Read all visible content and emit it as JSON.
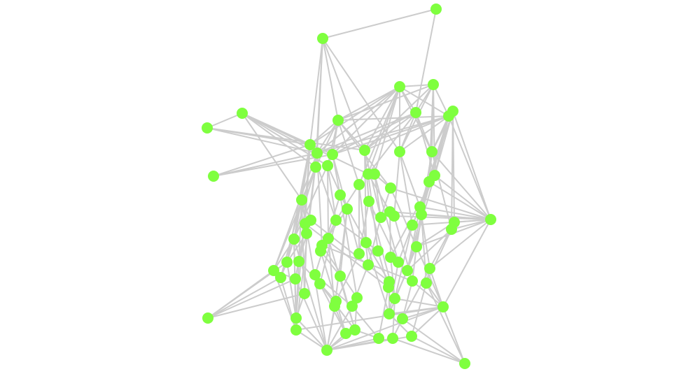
{
  "graph": {
    "node_color": "#7fff3f",
    "edge_color": "#cccccc",
    "background": "#ffffff",
    "node_count": 86,
    "edges": [
      [
        1,
        2
      ],
      [
        1,
        5
      ],
      [
        2,
        11
      ],
      [
        2,
        12
      ],
      [
        2,
        17
      ],
      [
        2,
        9
      ],
      [
        2,
        14
      ],
      [
        2,
        15
      ],
      [
        3,
        4
      ],
      [
        3,
        5
      ],
      [
        3,
        9
      ],
      [
        3,
        14
      ],
      [
        3,
        15
      ],
      [
        3,
        16
      ],
      [
        3,
        12
      ],
      [
        3,
        13
      ],
      [
        3,
        19
      ],
      [
        3,
        20
      ],
      [
        3,
        7
      ],
      [
        3,
        11
      ],
      [
        3,
        24
      ],
      [
        4,
        5
      ],
      [
        4,
        7
      ],
      [
        4,
        16
      ],
      [
        4,
        15
      ],
      [
        4,
        14
      ],
      [
        4,
        22
      ],
      [
        4,
        9
      ],
      [
        4,
        23
      ],
      [
        6,
        7
      ],
      [
        6,
        35
      ],
      [
        6,
        16
      ],
      [
        6,
        22
      ],
      [
        6,
        23
      ],
      [
        6,
        40
      ],
      [
        6,
        39
      ],
      [
        7,
        35
      ],
      [
        7,
        16
      ],
      [
        7,
        22
      ],
      [
        7,
        15
      ],
      [
        7,
        23
      ],
      [
        7,
        31
      ],
      [
        7,
        30
      ],
      [
        7,
        14
      ],
      [
        7,
        12
      ],
      [
        7,
        13
      ],
      [
        7,
        9
      ],
      [
        8,
        10
      ],
      [
        8,
        11
      ],
      [
        8,
        12
      ],
      [
        8,
        13
      ],
      [
        8,
        27
      ],
      [
        8,
        17
      ],
      [
        8,
        18
      ],
      [
        8,
        19
      ],
      [
        10,
        11
      ],
      [
        10,
        12
      ],
      [
        10,
        14
      ],
      [
        21,
        11
      ],
      [
        21,
        12
      ],
      [
        21,
        13
      ],
      [
        35,
        16
      ],
      [
        35,
        22
      ],
      [
        35,
        23
      ],
      [
        35,
        30
      ],
      [
        35,
        31
      ],
      [
        35,
        39
      ],
      [
        35,
        40
      ],
      [
        35,
        41
      ],
      [
        35,
        34
      ],
      [
        35,
        25
      ],
      [
        35,
        32
      ],
      [
        35,
        50
      ],
      [
        35,
        74
      ],
      [
        35,
        57
      ],
      [
        75,
        58
      ],
      [
        75,
        59
      ],
      [
        75,
        53
      ],
      [
        75,
        60
      ],
      [
        75,
        68
      ],
      [
        86,
        74
      ],
      [
        86,
        84
      ],
      [
        86,
        67
      ],
      [
        86,
        83
      ],
      [
        86,
        78
      ],
      [
        74,
        50
      ],
      [
        74,
        57
      ],
      [
        74,
        67
      ],
      [
        74,
        66
      ],
      [
        74,
        69
      ],
      [
        74,
        77
      ],
      [
        74,
        78
      ],
      [
        74,
        84
      ],
      [
        74,
        85
      ],
      [
        74,
        79
      ],
      [
        85,
        79
      ],
      [
        85,
        76
      ],
      [
        85,
        80
      ],
      [
        85,
        81
      ],
      [
        85,
        82
      ],
      [
        85,
        83
      ],
      [
        85,
        84
      ],
      [
        85,
        73
      ],
      [
        85,
        72
      ],
      [
        85,
        71
      ],
      [
        9,
        11
      ],
      [
        9,
        12
      ],
      [
        9,
        13
      ],
      [
        9,
        14
      ],
      [
        9,
        17
      ],
      [
        9,
        18
      ],
      [
        9,
        24
      ],
      [
        9,
        25
      ],
      [
        5,
        14
      ],
      [
        5,
        15
      ],
      [
        5,
        16
      ],
      [
        5,
        19
      ],
      [
        5,
        22
      ],
      [
        5,
        12
      ],
      [
        5,
        13
      ],
      [
        11,
        27
      ],
      [
        11,
        43
      ],
      [
        11,
        38
      ],
      [
        11,
        53
      ],
      [
        11,
        36
      ],
      [
        12,
        42
      ],
      [
        12,
        58
      ],
      [
        12,
        45
      ],
      [
        13,
        26
      ],
      [
        13,
        49
      ],
      [
        13,
        43
      ],
      [
        14,
        28
      ],
      [
        14,
        33
      ],
      [
        14,
        47
      ],
      [
        15,
        30
      ],
      [
        15,
        34
      ],
      [
        15,
        41
      ],
      [
        16,
        31
      ],
      [
        16,
        50
      ],
      [
        16,
        23
      ],
      [
        17,
        27
      ],
      [
        17,
        43
      ],
      [
        17,
        53
      ],
      [
        18,
        29
      ],
      [
        18,
        36
      ],
      [
        18,
        44
      ],
      [
        19,
        32
      ],
      [
        19,
        48
      ],
      [
        20,
        25
      ],
      [
        20,
        33
      ],
      [
        22,
        41
      ],
      [
        22,
        51
      ],
      [
        23,
        30
      ],
      [
        23,
        56
      ],
      [
        24,
        36
      ],
      [
        24,
        49
      ],
      [
        25,
        33
      ],
      [
        25,
        50
      ],
      [
        26,
        47
      ],
      [
        26,
        61
      ],
      [
        27,
        37
      ],
      [
        27,
        43
      ],
      [
        27,
        59
      ],
      [
        27,
        76
      ],
      [
        28,
        49
      ],
      [
        28,
        52
      ],
      [
        29,
        45
      ],
      [
        29,
        63
      ],
      [
        30,
        41
      ],
      [
        30,
        56
      ],
      [
        31,
        57
      ],
      [
        32,
        51
      ],
      [
        33,
        55
      ],
      [
        34,
        66
      ],
      [
        36,
        46
      ],
      [
        36,
        62
      ],
      [
        37,
        54
      ],
      [
        38,
        60
      ],
      [
        39,
        57
      ],
      [
        39,
        50
      ],
      [
        40,
        56
      ],
      [
        40,
        67
      ],
      [
        41,
        52
      ],
      [
        42,
        53
      ],
      [
        42,
        68
      ],
      [
        43,
        58
      ],
      [
        43,
        79
      ],
      [
        43,
        76
      ],
      [
        44,
        72
      ],
      [
        45,
        70
      ],
      [
        46,
        63
      ],
      [
        47,
        64
      ],
      [
        48,
        65
      ],
      [
        49,
        71
      ],
      [
        50,
        66
      ],
      [
        51,
        69
      ],
      [
        52,
        77
      ],
      [
        53,
        59
      ],
      [
        53,
        76
      ],
      [
        54,
        62
      ],
      [
        55,
        73
      ],
      [
        56,
        69
      ],
      [
        57,
        67
      ],
      [
        58,
        60
      ],
      [
        59,
        79
      ],
      [
        60,
        85
      ],
      [
        61,
        81
      ],
      [
        62,
        71
      ],
      [
        63,
        80
      ],
      [
        64,
        77
      ],
      [
        65,
        82
      ],
      [
        66,
        78
      ],
      [
        67,
        84
      ],
      [
        68,
        76
      ],
      [
        69,
        83
      ],
      [
        70,
        80
      ],
      [
        72,
        81
      ],
      [
        73,
        82
      ],
      [
        76,
        79
      ],
      [
        77,
        84
      ],
      [
        78,
        83
      ],
      [
        80,
        82
      ],
      [
        81,
        85
      ],
      [
        27,
        85
      ],
      [
        43,
        85
      ],
      [
        58,
        79
      ],
      [
        11,
        76
      ],
      [
        12,
        79
      ],
      [
        17,
        58
      ],
      [
        27,
        68
      ],
      [
        41,
        69
      ],
      [
        50,
        77
      ],
      [
        57,
        78
      ],
      [
        22,
        56
      ],
      [
        16,
        40
      ],
      [
        31,
        67
      ],
      [
        47,
        77
      ],
      [
        24,
        55
      ],
      [
        26,
        70
      ],
      [
        29,
        72
      ],
      [
        44,
        80
      ],
      [
        46,
        81
      ],
      [
        61,
        73
      ],
      [
        62,
        80
      ],
      [
        37,
        64
      ],
      [
        38,
        65
      ],
      [
        45,
        66
      ],
      [
        36,
        48
      ],
      [
        28,
        69
      ],
      [
        20,
        52
      ]
    ]
  }
}
